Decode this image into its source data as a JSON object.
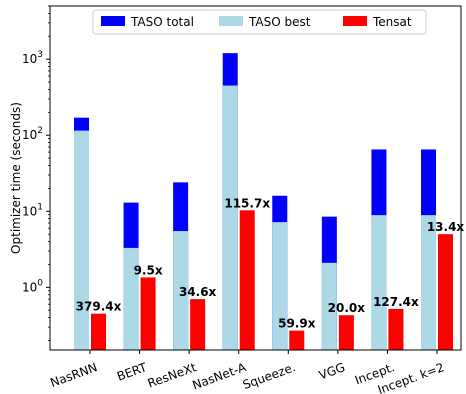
{
  "chart_data": {
    "type": "bar",
    "title": "",
    "xlabel": "",
    "ylabel": "Optimizer time (seconds)",
    "yscale": "log",
    "ylim": [
      0.15,
      5000
    ],
    "yticks": [
      {
        "value": 1,
        "label": "10"
      },
      {
        "value": 10,
        "label": "10"
      },
      {
        "value": 100,
        "label": "10"
      },
      {
        "value": 1000,
        "label": "10"
      }
    ],
    "ytick_exponents": [
      "0",
      "1",
      "2",
      "3"
    ],
    "categories": [
      "NasRNN",
      "BERT",
      "ResNeXt",
      "NasNet-A",
      "Squeeze.",
      "VGG",
      "Incept.",
      "Incept. k=2"
    ],
    "series": [
      {
        "name": "TASO total",
        "color": "#0000ff",
        "values": [
          170,
          13,
          24,
          1200,
          16,
          8.5,
          65,
          65
        ]
      },
      {
        "name": "TASO best",
        "color": "#add8e6",
        "values": [
          115,
          3.3,
          5.5,
          450,
          7.2,
          2.1,
          8.9,
          8.9
        ]
      },
      {
        "name": "Tensat",
        "color": "#ff0000",
        "values": [
          0.45,
          1.35,
          0.7,
          10.3,
          0.27,
          0.43,
          0.52,
          5.0
        ]
      }
    ],
    "annotations": [
      "379.4x",
      "9.5x",
      "34.6x",
      "115.7x",
      "59.9x",
      "20.0x",
      "127.4x",
      "13.4x"
    ],
    "legend": {
      "position": "top-center",
      "columns": 3
    },
    "grid": false
  }
}
